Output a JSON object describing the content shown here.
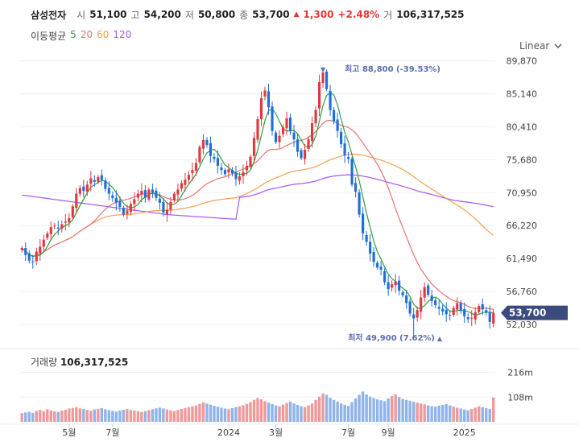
{
  "header": {
    "stock_name": "삼성전자",
    "open_label": "시",
    "open": "51,100",
    "high_label": "고",
    "high": "54,200",
    "low_label": "저",
    "low": "50,800",
    "close_label": "종",
    "close": "53,700",
    "change_arrow": "▲",
    "change": "1,300",
    "change_pct": "+2.48%",
    "volume_label": "거",
    "volume": "106,317,525"
  },
  "ma_legend": {
    "title": "이동평균",
    "items": [
      {
        "label": "5",
        "color": "#2ea043"
      },
      {
        "label": "20",
        "color": "#e57373"
      },
      {
        "label": "60",
        "color": "#f0a055"
      },
      {
        "label": "120",
        "color": "#a855f7"
      }
    ]
  },
  "scale_toggle": {
    "label": "Linear",
    "icon": "chevron-down-icon"
  },
  "volume_panel": {
    "label": "거래량",
    "value": "106,317,525"
  },
  "chart_data": {
    "type": "candlestick",
    "price_ticks": [
      "89,870",
      "85,140",
      "80,410",
      "75,680",
      "70,950",
      "66,220",
      "61,490",
      "56,760",
      "52,030"
    ],
    "price_tick_values": [
      89870,
      85140,
      80410,
      75680,
      70950,
      66220,
      61490,
      56760,
      52030
    ],
    "y_range": [
      49500,
      90500
    ],
    "current_price_label": "53,700",
    "current_price": 53700,
    "high_annotation": {
      "text": "최고 88,800 (-39.53%)",
      "marker": "▼",
      "value": 88800
    },
    "low_annotation": {
      "text": "최저 49,900 (7.62%)",
      "marker": "▲",
      "value": 49900
    },
    "volume_ticks": [
      "216m",
      "108m"
    ],
    "volume_tick_values": [
      216,
      108
    ],
    "volume_range": [
      0,
      260
    ],
    "x_labels": [
      "5월",
      "7월",
      "2024",
      "3월",
      "7월",
      "9월",
      "2025"
    ],
    "x_label_positions": [
      13,
      25,
      57,
      70,
      90,
      101,
      122
    ],
    "closes": [
      63000,
      62000,
      61200,
      61000,
      62500,
      63200,
      64200,
      65100,
      66000,
      66200,
      65800,
      66400,
      66800,
      67300,
      69000,
      70800,
      71600,
      71200,
      72100,
      73000,
      72500,
      73200,
      72800,
      71500,
      70800,
      70200,
      69500,
      68900,
      67800,
      68400,
      69300,
      70000,
      70800,
      71200,
      70200,
      71400,
      71000,
      70200,
      69500,
      68100,
      68500,
      69600,
      70800,
      71400,
      72300,
      72800,
      73500,
      74200,
      75200,
      77500,
      78500,
      77800,
      76200,
      75800,
      74800,
      74200,
      73600,
      74300,
      73700,
      72900,
      73300,
      73900,
      74800,
      76100,
      78800,
      81500,
      84500,
      85600,
      83200,
      79800,
      78200,
      79100,
      80300,
      81600,
      79800,
      78600,
      76800,
      75900,
      77100,
      78600,
      80900,
      82800,
      86800,
      88200,
      85800,
      82800,
      81200,
      79800,
      77900,
      76300,
      75800,
      72100,
      71100,
      67800,
      65100,
      63900,
      62200,
      61000,
      60200,
      59900,
      58100,
      57100,
      57800,
      58200,
      56900,
      56200,
      55100,
      53600,
      52900,
      54100,
      55900,
      57400,
      56300,
      55400,
      54800,
      54300,
      53900,
      53500,
      53300,
      54400,
      55100,
      54000,
      53200,
      52800,
      53000,
      53800,
      54700,
      54200,
      53700,
      52400,
      53700
    ]
  },
  "volume_series": [
    38,
    41,
    44,
    39,
    48,
    52,
    47,
    55,
    50,
    46,
    43,
    49,
    53,
    58,
    61,
    64,
    59,
    56,
    52,
    48,
    54,
    57,
    60,
    55,
    51,
    48,
    45,
    50,
    53,
    56,
    52,
    49,
    46,
    43,
    47,
    51,
    55,
    59,
    62,
    58,
    54,
    50,
    47,
    52,
    56,
    60,
    64,
    68,
    72,
    78,
    85,
    80,
    75,
    70,
    66,
    62,
    58,
    55,
    60,
    64,
    68,
    72,
    78,
    86,
    96,
    104,
    98,
    90,
    84,
    78,
    72,
    68,
    75,
    82,
    88,
    80,
    74,
    68,
    64,
    72,
    80,
    95,
    110,
    124,
    118,
    105,
    96,
    88,
    80,
    74,
    70,
    86,
    102,
    118,
    132,
    120,
    110,
    104,
    98,
    94,
    90,
    102,
    112,
    120,
    108,
    100,
    96,
    92,
    88,
    84,
    80,
    76,
    72,
    68,
    66,
    70,
    74,
    78,
    72,
    66,
    62,
    58,
    54,
    50,
    56,
    62,
    68,
    64,
    60,
    56,
    106
  ]
}
